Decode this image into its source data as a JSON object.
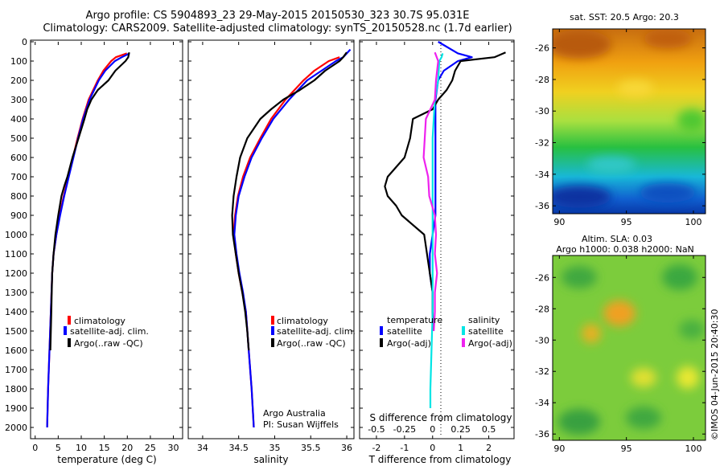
{
  "header": {
    "line1": "Argo profile: CS 5904893_23 29-May-2015 20150530_323 30.7S 95.031E",
    "line2": "Climatology: CARS2009. Satellite-adjusted climatology: synTS_20150528.nc (1.7d earlier)"
  },
  "colors": {
    "climatology": "#ff0000",
    "satellite": "#0000ff",
    "argo": "#000000",
    "sal_satellite": "#00e5e5",
    "sal_argo": "#ee22ee"
  },
  "labels": {
    "depth_ticks": [
      "0",
      "100",
      "200",
      "300",
      "400",
      "500",
      "600",
      "700",
      "800",
      "900",
      "1000",
      "1100",
      "1200",
      "1300",
      "1400",
      "1500",
      "1600",
      "1700",
      "1800",
      "1900",
      "2000"
    ],
    "credit": [
      "Argo Australia",
      "PI: Susan Wijffels"
    ],
    "diff_legend": {
      "temperature": "temperature",
      "salinity": "salinity",
      "satellite": "satellite",
      "argo": "Argo(-adj)"
    },
    "sst_title": "sat. SST: 20.5 Argo: 20.3",
    "sla_title1": "Altim. SLA: 0.03",
    "sla_title2": "Argo h1000: 0.038 h2000: NaN",
    "imos_stamp": "©IMOS 04-Jun-2015 20:40:30"
  },
  "chart_data": [
    {
      "type": "line",
      "xlabel": "temperature (deg C)",
      "ylabel": "",
      "xlim": [
        -1,
        32
      ],
      "ylim": [
        2050,
        0
      ],
      "xticks": [
        "0",
        "5",
        "10",
        "15",
        "20",
        "25",
        "30"
      ],
      "grid": false,
      "legend": [
        "climatology",
        "satellite-adj. clim.",
        "Argo(..raw -QC)"
      ],
      "series": [
        {
          "name": "climatology",
          "depth": [
            60,
            80,
            100,
            150,
            200,
            300,
            400,
            500,
            600,
            700,
            800,
            900,
            1000,
            1100,
            1200,
            1400,
            1600,
            1800,
            2000
          ],
          "values": [
            19.9,
            17.5,
            16.5,
            14.8,
            13.6,
            11.6,
            10.3,
            9.2,
            8.2,
            7.2,
            6.2,
            5.3,
            4.6,
            4.0,
            3.7,
            3.4,
            3.1,
            2.8,
            2.6
          ]
        },
        {
          "name": "satellite-adj. clim.",
          "depth": [
            60,
            80,
            100,
            150,
            200,
            300,
            400,
            500,
            600,
            700,
            800,
            900,
            1000,
            1100,
            1200,
            1400,
            1600,
            1800,
            2000
          ],
          "values": [
            20.5,
            18.8,
            17.3,
            15.2,
            13.8,
            11.8,
            10.4,
            9.3,
            8.3,
            7.3,
            6.3,
            5.4,
            4.6,
            4.0,
            3.7,
            3.4,
            3.1,
            2.8,
            2.6
          ]
        },
        {
          "name": "Argo(..raw -QC)",
          "depth": [
            55,
            80,
            100,
            150,
            200,
            250,
            300,
            350,
            400,
            500,
            600,
            700,
            750,
            800,
            900,
            1000,
            1100,
            1200,
            1300,
            1400,
            1500,
            1600
          ],
          "values": [
            20.4,
            20.2,
            19.6,
            17.4,
            15.9,
            13.6,
            12.2,
            11.3,
            10.7,
            9.4,
            8.1,
            7.0,
            6.3,
            5.7,
            5.0,
            4.4,
            4.0,
            3.7,
            3.6,
            3.5,
            3.4,
            3.3
          ]
        }
      ]
    },
    {
      "type": "line",
      "xlabel": "salinity",
      "ylabel": "",
      "xlim": [
        33.8,
        36.1
      ],
      "ylim": [
        2050,
        0
      ],
      "xticks": [
        "34",
        "34.5",
        "35",
        "35.5",
        "36"
      ],
      "grid": false,
      "legend": [
        "climatology",
        "satellite-adj. clim.",
        "Argo(..raw -QC)"
      ],
      "series": [
        {
          "name": "climatology",
          "depth": [
            80,
            100,
            150,
            200,
            300,
            400,
            500,
            600,
            700,
            800,
            900,
            1000,
            1100,
            1200,
            1300,
            1400,
            1600,
            1800,
            2000
          ],
          "values": [
            35.9,
            35.75,
            35.55,
            35.4,
            35.15,
            34.95,
            34.8,
            34.66,
            34.56,
            34.49,
            34.45,
            34.43,
            34.46,
            34.5,
            34.55,
            34.6,
            34.64,
            34.68,
            34.71
          ]
        },
        {
          "name": "satellite-adj. clim.",
          "depth": [
            40,
            80,
            100,
            150,
            200,
            300,
            400,
            500,
            600,
            700,
            800,
            900,
            1000,
            1100,
            1200,
            1300,
            1400,
            1600,
            1800,
            2000
          ],
          "values": [
            36.05,
            35.95,
            35.85,
            35.65,
            35.45,
            35.2,
            34.98,
            34.82,
            34.68,
            34.58,
            34.5,
            34.46,
            34.44,
            34.47,
            34.51,
            34.56,
            34.6,
            34.64,
            34.68,
            34.71
          ]
        },
        {
          "name": "Argo(..raw -QC)",
          "depth": [
            55,
            80,
            100,
            150,
            200,
            250,
            300,
            350,
            400,
            500,
            600,
            700,
            800,
            900,
            1000,
            1100,
            1200,
            1300,
            1400,
            1500,
            1600
          ],
          "values": [
            36.0,
            35.95,
            35.9,
            35.7,
            35.55,
            35.35,
            35.12,
            34.95,
            34.8,
            34.62,
            34.52,
            34.47,
            34.43,
            34.41,
            34.42,
            34.46,
            34.5,
            34.55,
            34.59,
            34.62,
            34.64
          ]
        }
      ]
    },
    {
      "type": "line",
      "xlabel": "T difference from climatology",
      "xlabel2": "S difference from climatology",
      "ylabel": "",
      "xlim": [
        -2.6,
        2.9
      ],
      "ylim": [
        2050,
        0
      ],
      "xticks": [
        "-2",
        "-1",
        "0",
        "1",
        "2"
      ],
      "xticks2": [
        "-0.5",
        "-0.25",
        "0",
        "0.25",
        "0.5"
      ],
      "grid": false,
      "series": [
        {
          "name": "temperature satellite",
          "depth": [
            0,
            60,
            80,
            100,
            150,
            200,
            300,
            400,
            500,
            600,
            700,
            800,
            900,
            1000,
            1100,
            1200,
            1300,
            1400,
            1500
          ],
          "values": [
            0.2,
            0.9,
            1.4,
            0.9,
            0.4,
            0.2,
            0.1,
            0.1,
            0.1,
            0.1,
            0.1,
            0.1,
            0.1,
            0.0,
            -0.1,
            -0.1,
            0.0,
            0.0,
            0.0
          ]
        },
        {
          "name": "temperature Argo(-adj)",
          "depth": [
            55,
            80,
            100,
            150,
            200,
            250,
            300,
            350,
            400,
            500,
            600,
            700,
            750,
            800,
            850,
            900,
            1000,
            1100,
            1200,
            1300,
            1400,
            1500
          ],
          "values": [
            2.6,
            2.2,
            1.0,
            0.8,
            0.7,
            0.5,
            0.2,
            0.0,
            -0.7,
            -0.8,
            -1.0,
            -1.6,
            -1.7,
            -1.6,
            -1.3,
            -1.1,
            -0.3,
            -0.2,
            -0.1,
            0.0,
            0.0,
            0.0
          ]
        },
        {
          "name": "salinity satellite",
          "depth": [
            60,
            80,
            100,
            200,
            300,
            400,
            500,
            600,
            800,
            1000,
            1200,
            1400,
            1600,
            1800,
            1900
          ],
          "values": [
            0.09,
            0.08,
            0.06,
            0.05,
            0.02,
            0.01,
            0.0,
            0.0,
            0.0,
            0.0,
            0.0,
            0.0,
            -0.01,
            -0.02,
            -0.02
          ]
        },
        {
          "name": "salinity Argo(-adj)",
          "depth": [
            55,
            100,
            200,
            300,
            400,
            500,
            600,
            700,
            800,
            900,
            1000,
            1100,
            1200,
            1300,
            1400,
            1500
          ],
          "values": [
            0.02,
            0.05,
            0.03,
            0.02,
            -0.06,
            -0.07,
            -0.08,
            -0.04,
            -0.03,
            0.02,
            0.03,
            0.02,
            0.04,
            0.02,
            0.02,
            0.01
          ]
        }
      ]
    },
    {
      "type": "heatmap",
      "title": "sat. SST: 20.5 Argo: 20.3",
      "xlim": [
        89.5,
        100.9
      ],
      "ylim": [
        -36.5,
        -24.8
      ],
      "xticks": [
        "90",
        "95",
        "100"
      ],
      "yticks": [
        "-26",
        "-28",
        "-30",
        "-32",
        "-34",
        "-36"
      ],
      "profile_position": {
        "lon": 95.031,
        "lat": -30.7
      }
    },
    {
      "type": "heatmap",
      "title": "Altim. SLA: 0.03",
      "xlim": [
        89.5,
        100.9
      ],
      "ylim": [
        -36.4,
        -24.6
      ],
      "xticks": [
        "90",
        "95",
        "100"
      ],
      "yticks": [
        "-26",
        "-28",
        "-30",
        "-32",
        "-34",
        "-36"
      ],
      "profile_position": {
        "lon": 95.031,
        "lat": -30.7
      }
    }
  ]
}
